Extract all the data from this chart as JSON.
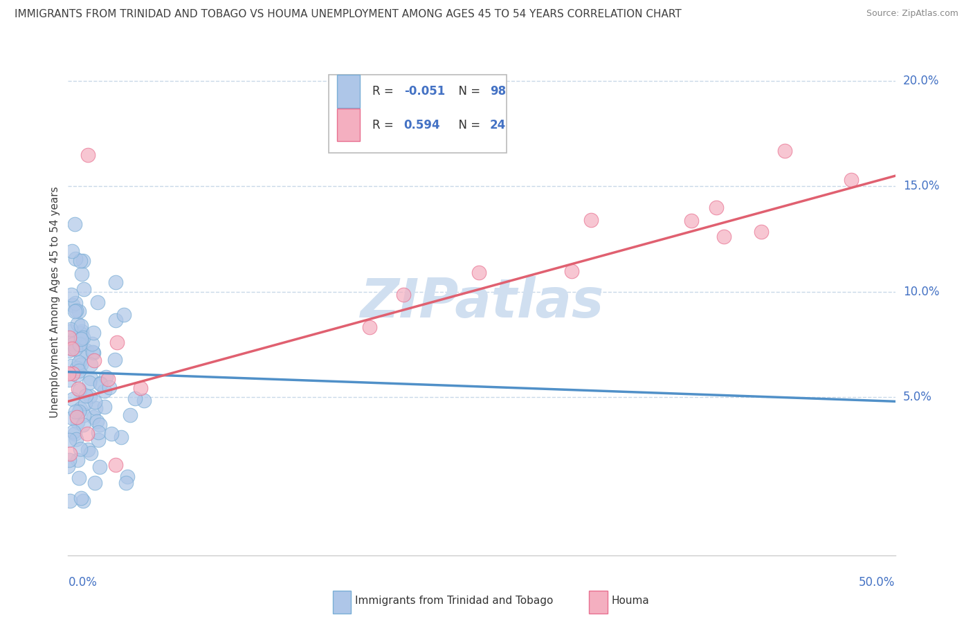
{
  "title": "IMMIGRANTS FROM TRINIDAD AND TOBAGO VS HOUMA UNEMPLOYMENT AMONG AGES 45 TO 54 YEARS CORRELATION CHART",
  "source": "Source: ZipAtlas.com",
  "ylabel": "Unemployment Among Ages 45 to 54 years",
  "ytick_labels": [
    "5.0%",
    "10.0%",
    "15.0%",
    "20.0%"
  ],
  "ytick_values": [
    0.05,
    0.1,
    0.15,
    0.2
  ],
  "xmin": 0.0,
  "xmax": 0.5,
  "ymin": -0.025,
  "ymax": 0.215,
  "legend1_label": "Immigrants from Trinidad and Tobago",
  "legend2_label": "Houma",
  "legend1_R": "-0.051",
  "legend1_N": "98",
  "legend2_R": "0.594",
  "legend2_N": "24",
  "blue_fill_color": "#aec6e8",
  "pink_fill_color": "#f4afc0",
  "blue_edge_color": "#7aaed6",
  "pink_edge_color": "#e87090",
  "blue_line_color": "#5090c8",
  "pink_line_color": "#e06070",
  "watermark_color": "#d0dff0",
  "background_color": "#ffffff",
  "grid_color": "#c8d8e8",
  "title_color": "#404040",
  "axis_label_color": "#4472c4",
  "source_color": "#888888",
  "blue_trend_x0": 0.0,
  "blue_trend_x1": 0.5,
  "blue_trend_y0": 0.062,
  "blue_trend_y1": 0.048,
  "pink_trend_x0": 0.0,
  "pink_trend_x1": 0.5,
  "pink_trend_y0": 0.048,
  "pink_trend_y1": 0.155
}
